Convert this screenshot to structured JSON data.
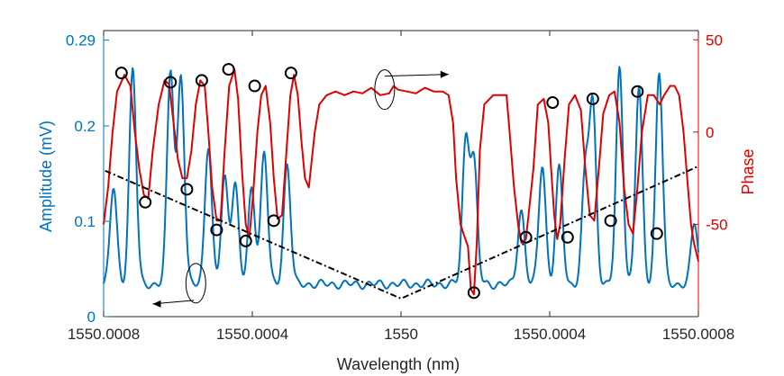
{
  "chart_data": {
    "type": "line",
    "xlabel": "Wavelength (nm)",
    "ylabel_left": "Amplitude (mV)",
    "ylabel_right": "Phase",
    "x_range": [
      -1,
      1
    ],
    "ylim_left": [
      0,
      0.3
    ],
    "ylim_right": [
      -100,
      55
    ],
    "x_ticks": [
      {
        "x": -1,
        "label": "1550.0008"
      },
      {
        "x": -0.5,
        "label": "1550.0004"
      },
      {
        "x": 0,
        "label": "1550"
      },
      {
        "x": 0.5,
        "label": "1550.0004"
      },
      {
        "x": 1,
        "label": "1550.0008"
      }
    ],
    "y_ticks_left": [
      {
        "v": 0,
        "label": "0"
      },
      {
        "v": 0.1,
        "label": "0.1"
      },
      {
        "v": 0.2,
        "label": "0.2"
      },
      {
        "v": 0.29,
        "label": "0.29"
      }
    ],
    "y_ticks_right": [
      {
        "v": 50,
        "label": "50"
      },
      {
        "v": 0,
        "label": "0"
      },
      {
        "v": -50,
        "label": "-50"
      }
    ],
    "colors": {
      "amplitude": "#0072BD",
      "phase": "#E00000",
      "envelope": "#000000",
      "markers": "#000000"
    },
    "series": [
      {
        "name": "Amplitude",
        "axis": "left",
        "baseline": 0.034,
        "peaks": [
          {
            "x": -0.967,
            "a": 0.135
          },
          {
            "x": -0.902,
            "a": 0.26
          },
          {
            "x": -0.775,
            "a": 0.258
          },
          {
            "x": -0.74,
            "a": 0.253
          },
          {
            "x": -0.648,
            "a": 0.18
          },
          {
            "x": -0.593,
            "a": 0.145
          },
          {
            "x": -0.558,
            "a": 0.14
          },
          {
            "x": -0.502,
            "a": 0.135
          },
          {
            "x": -0.46,
            "a": 0.173
          },
          {
            "x": -0.383,
            "a": 0.16
          },
          {
            "x": 0.218,
            "a": 0.185
          },
          {
            "x": 0.245,
            "a": 0.16
          },
          {
            "x": 0.404,
            "a": 0.112
          },
          {
            "x": 0.475,
            "a": 0.16
          },
          {
            "x": 0.532,
            "a": 0.155
          },
          {
            "x": 0.62,
            "a": 0.15
          },
          {
            "x": 0.645,
            "a": 0.218
          },
          {
            "x": 0.735,
            "a": 0.26
          },
          {
            "x": 0.8,
            "a": 0.24
          },
          {
            "x": 0.868,
            "a": 0.258
          },
          {
            "x": 0.987,
            "a": 0.098
          }
        ]
      },
      {
        "name": "Phase",
        "axis": "right",
        "points": [
          [
            -1.0,
            -50
          ],
          [
            -0.985,
            -30
          ],
          [
            -0.97,
            0
          ],
          [
            -0.955,
            22
          ],
          [
            -0.93,
            31
          ],
          [
            -0.91,
            25
          ],
          [
            -0.895,
            0
          ],
          [
            -0.88,
            -20
          ],
          [
            -0.865,
            -34
          ],
          [
            -0.85,
            -36
          ],
          [
            -0.835,
            -10
          ],
          [
            -0.815,
            15
          ],
          [
            -0.795,
            28
          ],
          [
            -0.78,
            26
          ],
          [
            -0.765,
            5
          ],
          [
            -0.75,
            -15
          ],
          [
            -0.735,
            -25
          ],
          [
            -0.72,
            -25
          ],
          [
            -0.705,
            -10
          ],
          [
            -0.69,
            15
          ],
          [
            -0.675,
            28
          ],
          [
            -0.66,
            25
          ],
          [
            -0.648,
            0
          ],
          [
            -0.635,
            -30
          ],
          [
            -0.62,
            -48
          ],
          [
            -0.607,
            -48
          ],
          [
            -0.593,
            -10
          ],
          [
            -0.578,
            25
          ],
          [
            -0.56,
            34
          ],
          [
            -0.548,
            18
          ],
          [
            -0.535,
            -20
          ],
          [
            -0.522,
            -50
          ],
          [
            -0.51,
            -57
          ],
          [
            -0.498,
            -35
          ],
          [
            -0.483,
            0
          ],
          [
            -0.47,
            20
          ],
          [
            -0.455,
            25
          ],
          [
            -0.44,
            5
          ],
          [
            -0.428,
            -25
          ],
          [
            -0.415,
            -47
          ],
          [
            -0.4,
            -45
          ],
          [
            -0.385,
            -10
          ],
          [
            -0.372,
            20
          ],
          [
            -0.36,
            31
          ],
          [
            -0.347,
            20
          ],
          [
            -0.335,
            -5
          ],
          [
            -0.323,
            -25
          ],
          [
            -0.31,
            -30
          ],
          [
            -0.29,
            0
          ],
          [
            -0.275,
            15
          ],
          [
            -0.25,
            20
          ],
          [
            -0.22,
            22
          ],
          [
            -0.19,
            20
          ],
          [
            -0.16,
            22
          ],
          [
            -0.13,
            21
          ],
          [
            -0.1,
            24
          ],
          [
            -0.07,
            20
          ],
          [
            -0.04,
            21
          ],
          [
            -0.025,
            25
          ],
          [
            -0.01,
            23
          ],
          [
            0.02,
            22
          ],
          [
            0.05,
            21
          ],
          [
            0.08,
            24
          ],
          [
            0.11,
            22
          ],
          [
            0.14,
            22
          ],
          [
            0.16,
            20
          ],
          [
            0.175,
            5
          ],
          [
            0.185,
            -25
          ],
          [
            0.2,
            -50
          ],
          [
            0.21,
            -55
          ],
          [
            0.225,
            -62
          ],
          [
            0.235,
            -85
          ],
          [
            0.245,
            -88
          ],
          [
            0.255,
            -60
          ],
          [
            0.265,
            -10
          ],
          [
            0.28,
            15
          ],
          [
            0.31,
            20
          ],
          [
            0.33,
            20
          ],
          [
            0.355,
            20
          ],
          [
            0.365,
            0
          ],
          [
            0.38,
            -30
          ],
          [
            0.395,
            -52
          ],
          [
            0.405,
            -60
          ],
          [
            0.42,
            -58
          ],
          [
            0.432,
            -40
          ],
          [
            0.445,
            -20
          ],
          [
            0.46,
            15
          ],
          [
            0.48,
            18
          ],
          [
            0.495,
            5
          ],
          [
            0.505,
            -20
          ],
          [
            0.515,
            -45
          ],
          [
            0.525,
            -58
          ],
          [
            0.535,
            -50
          ],
          [
            0.55,
            -15
          ],
          [
            0.565,
            15
          ],
          [
            0.585,
            20
          ],
          [
            0.605,
            12
          ],
          [
            0.62,
            -20
          ],
          [
            0.635,
            -45
          ],
          [
            0.65,
            -48
          ],
          [
            0.665,
            -20
          ],
          [
            0.68,
            10
          ],
          [
            0.7,
            20
          ],
          [
            0.718,
            22
          ],
          [
            0.735,
            5
          ],
          [
            0.75,
            -30
          ],
          [
            0.765,
            -50
          ],
          [
            0.78,
            -55
          ],
          [
            0.795,
            -30
          ],
          [
            0.81,
            0
          ],
          [
            0.83,
            20
          ],
          [
            0.85,
            20
          ],
          [
            0.87,
            15
          ],
          [
            0.885,
            20
          ],
          [
            0.905,
            25
          ],
          [
            0.92,
            25
          ],
          [
            0.935,
            20
          ],
          [
            0.95,
            0
          ],
          [
            0.965,
            -30
          ],
          [
            0.975,
            -50
          ],
          [
            0.985,
            -60
          ],
          [
            1.0,
            -70
          ]
        ]
      },
      {
        "name": "Envelope",
        "style": "dash-dot",
        "axis": "left",
        "points": [
          [
            -0.995,
            0.153
          ],
          [
            0.0,
            0.019
          ],
          [
            0.995,
            0.157
          ]
        ]
      }
    ],
    "markers": [
      {
        "x": -0.94,
        "phase": 32
      },
      {
        "x": -0.86,
        "phase": -38
      },
      {
        "x": -0.775,
        "phase": 27
      },
      {
        "x": -0.72,
        "phase": -31
      },
      {
        "x": -0.67,
        "phase": 28
      },
      {
        "x": -0.62,
        "phase": -53
      },
      {
        "x": -0.58,
        "phase": 34
      },
      {
        "x": -0.522,
        "phase": -59
      },
      {
        "x": -0.492,
        "phase": 25
      },
      {
        "x": -0.428,
        "phase": -48
      },
      {
        "x": -0.37,
        "phase": 32
      },
      {
        "x": 0.245,
        "phase": -87
      },
      {
        "x": 0.42,
        "phase": -57
      },
      {
        "x": 0.51,
        "phase": 16
      },
      {
        "x": 0.56,
        "phase": -57
      },
      {
        "x": 0.645,
        "phase": 18
      },
      {
        "x": 0.705,
        "phase": -48
      },
      {
        "x": 0.795,
        "phase": 22
      },
      {
        "x": 0.86,
        "phase": -55
      }
    ],
    "annotations": [
      {
        "name": "phase-axis-pointer",
        "at": [
          -0.055,
          23
        ],
        "axis": "right",
        "direction": "right",
        "to_x": 0.16
      },
      {
        "name": "amplitude-axis-pointer",
        "at": [
          -0.69,
          0.035
        ],
        "axis": "left",
        "direction": "left",
        "to_x": -0.835
      }
    ]
  }
}
